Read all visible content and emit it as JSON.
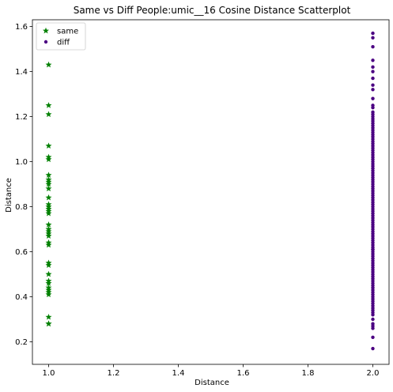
{
  "chart_data": {
    "type": "scatter",
    "title": "Same vs Diff People:umic__16 Cosine Distance Scatterplot",
    "xlabel": "Distance",
    "ylabel": "Distance",
    "xlim": [
      0.95,
      2.05
    ],
    "ylim": [
      0.1,
      1.63
    ],
    "xticks": [
      1.0,
      1.2,
      1.4,
      1.6,
      1.8,
      2.0
    ],
    "yticks": [
      0.2,
      0.4,
      0.6,
      0.8,
      1.0,
      1.2,
      1.4,
      1.6
    ],
    "grid": false,
    "legend_position": "top-left",
    "series": [
      {
        "name": "same",
        "marker": "star",
        "color": "#008000",
        "x": [
          1,
          1,
          1,
          1,
          1,
          1,
          1,
          1,
          1,
          1,
          1,
          1,
          1,
          1,
          1,
          1,
          1,
          1,
          1,
          1,
          1,
          1,
          1,
          1,
          1,
          1,
          1,
          1,
          1,
          1,
          1,
          1,
          1,
          1,
          1,
          1
        ],
        "y": [
          1.43,
          1.25,
          1.21,
          1.07,
          1.02,
          1.01,
          0.94,
          0.92,
          0.91,
          0.9,
          0.88,
          0.84,
          0.81,
          0.8,
          0.79,
          0.78,
          0.77,
          0.72,
          0.7,
          0.69,
          0.68,
          0.67,
          0.64,
          0.63,
          0.55,
          0.54,
          0.5,
          0.47,
          0.46,
          0.44,
          0.43,
          0.42,
          0.41,
          0.31,
          0.28,
          0.28
        ]
      },
      {
        "name": "diff",
        "marker": "circle",
        "color": "#4b0082",
        "x": [
          2,
          2,
          2,
          2,
          2,
          2,
          2,
          2,
          2,
          2,
          2,
          2,
          2,
          2,
          2,
          2,
          2,
          2,
          2,
          2,
          2,
          2,
          2,
          2,
          2,
          2,
          2,
          2,
          2,
          2,
          2,
          2,
          2,
          2,
          2,
          2,
          2,
          2,
          2,
          2,
          2,
          2,
          2,
          2,
          2,
          2,
          2,
          2,
          2,
          2,
          2,
          2,
          2,
          2,
          2,
          2,
          2,
          2,
          2,
          2,
          2,
          2,
          2,
          2,
          2,
          2,
          2,
          2,
          2,
          2,
          2,
          2,
          2,
          2,
          2,
          2,
          2,
          2,
          2,
          2,
          2,
          2,
          2,
          2,
          2,
          2,
          2,
          2,
          2,
          2,
          2,
          2,
          2,
          2,
          2,
          2,
          2,
          2,
          2,
          2,
          2,
          2,
          2,
          2,
          2,
          2,
          2,
          2,
          2,
          2
        ],
        "y": [
          1.57,
          1.55,
          1.51,
          1.45,
          1.42,
          1.4,
          1.37,
          1.34,
          1.32,
          1.28,
          1.25,
          1.24,
          1.22,
          1.21,
          1.2,
          1.19,
          1.18,
          1.17,
          1.16,
          1.15,
          1.14,
          1.13,
          1.12,
          1.11,
          1.1,
          1.09,
          1.08,
          1.07,
          1.06,
          1.05,
          1.04,
          1.03,
          1.02,
          1.01,
          1.0,
          0.99,
          0.98,
          0.97,
          0.96,
          0.95,
          0.94,
          0.93,
          0.92,
          0.91,
          0.9,
          0.89,
          0.88,
          0.87,
          0.86,
          0.85,
          0.84,
          0.83,
          0.82,
          0.81,
          0.8,
          0.79,
          0.78,
          0.77,
          0.76,
          0.75,
          0.74,
          0.73,
          0.72,
          0.71,
          0.7,
          0.69,
          0.68,
          0.67,
          0.66,
          0.65,
          0.64,
          0.63,
          0.62,
          0.61,
          0.6,
          0.59,
          0.58,
          0.57,
          0.56,
          0.55,
          0.54,
          0.53,
          0.52,
          0.51,
          0.5,
          0.49,
          0.48,
          0.47,
          0.46,
          0.45,
          0.44,
          0.43,
          0.42,
          0.41,
          0.4,
          0.39,
          0.38,
          0.37,
          0.36,
          0.35,
          0.34,
          0.33,
          0.32,
          0.3,
          0.28,
          0.27,
          0.26,
          0.22,
          0.17,
          0.61
        ]
      }
    ]
  }
}
